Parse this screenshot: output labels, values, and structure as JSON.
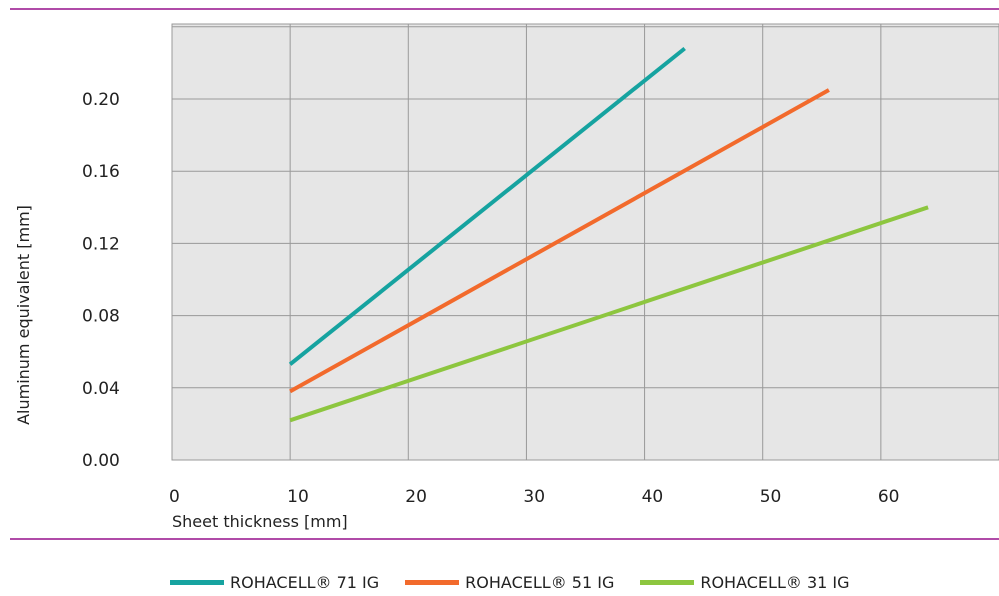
{
  "colors": {
    "rule": "#b04ba8",
    "plot_background": "#e6e6e6",
    "grid": "#999999",
    "border": "#999999"
  },
  "chart_data": {
    "type": "line",
    "xlabel": "Sheet thickness [mm]",
    "ylabel": "Aluminum equivalent [mm]",
    "xlim": [
      0,
      70
    ],
    "ylim": [
      0.0,
      0.24
    ],
    "x_ticks": [
      0,
      10,
      20,
      30,
      40,
      50,
      60
    ],
    "x_tick_labels": [
      "0",
      "10",
      "20",
      "30",
      "40",
      "50",
      "60"
    ],
    "y_ticks": [
      0.0,
      0.04,
      0.08,
      0.12,
      0.16,
      0.2
    ],
    "y_tick_labels": [
      "0.00",
      "0.04",
      "0.08",
      "0.12",
      "0.16",
      "0.20"
    ],
    "grid": true,
    "legend_position": "bottom",
    "series": [
      {
        "name": "ROHACELL® 71 IG",
        "color": "#16a3a0",
        "x": [
          10,
          43.4
        ],
        "y": [
          0.053,
          0.228
        ]
      },
      {
        "name": "ROHACELL® 51 IG",
        "color": "#f26a2c",
        "x": [
          10,
          55.6
        ],
        "y": [
          0.038,
          0.205
        ]
      },
      {
        "name": "ROHACELL® 31 IG",
        "color": "#8dc63f",
        "x": [
          10,
          64
        ],
        "y": [
          0.022,
          0.14
        ]
      }
    ]
  }
}
